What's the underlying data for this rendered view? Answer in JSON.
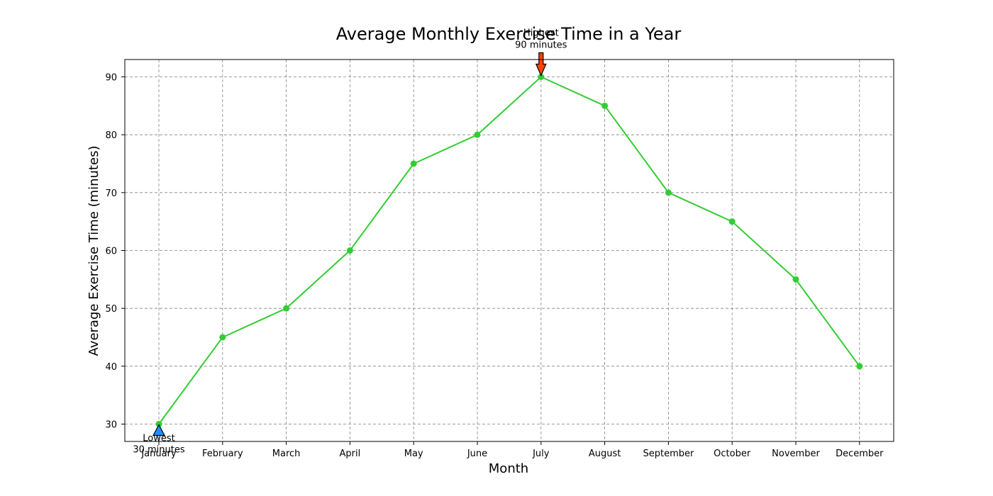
{
  "chart_data": {
    "type": "line",
    "title": "Average Monthly Exercise Time in a Year",
    "xlabel": "Month",
    "ylabel": "Average Exercise Time (minutes)",
    "categories": [
      "January",
      "February",
      "March",
      "April",
      "May",
      "June",
      "July",
      "August",
      "September",
      "October",
      "November",
      "December"
    ],
    "values": [
      30,
      45,
      50,
      60,
      75,
      80,
      90,
      85,
      70,
      65,
      55,
      40
    ],
    "ylim": [
      27,
      93
    ],
    "yticks": [
      30,
      40,
      50,
      60,
      70,
      80,
      90
    ],
    "grid": true,
    "line_color": "#32cd32",
    "grid_color": "#808080",
    "annotations": [
      {
        "line1": "Highest",
        "line2": "90 minutes",
        "category": "July",
        "value": 90,
        "arrow_color": "#ff4500",
        "arrow_direction": "down"
      },
      {
        "line1": "Lowest",
        "line2": "30 minutes",
        "category": "January",
        "value": 30,
        "arrow_color": "#1e90ff",
        "arrow_direction": "up"
      }
    ]
  }
}
